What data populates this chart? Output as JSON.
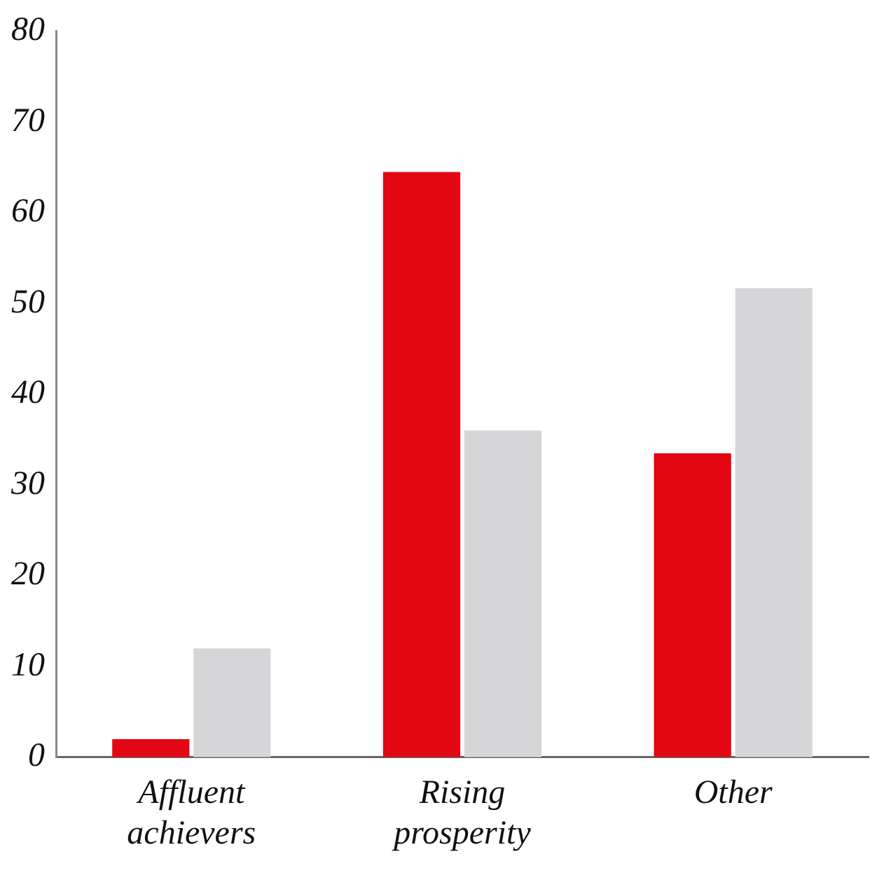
{
  "chart_data": {
    "type": "bar",
    "categories": [
      "Affluent achievers",
      "Rising prosperity",
      "Other"
    ],
    "series": [
      {
        "color": "#e30613",
        "values": [
          2,
          64.5,
          33.5
        ]
      },
      {
        "color": "#d6d6d8",
        "values": [
          12,
          36,
          51.7
        ]
      }
    ],
    "ylim": [
      0,
      80
    ],
    "yticks": [
      0,
      10,
      20,
      30,
      40,
      50,
      60,
      70,
      80
    ],
    "grid": false,
    "legend": false
  }
}
